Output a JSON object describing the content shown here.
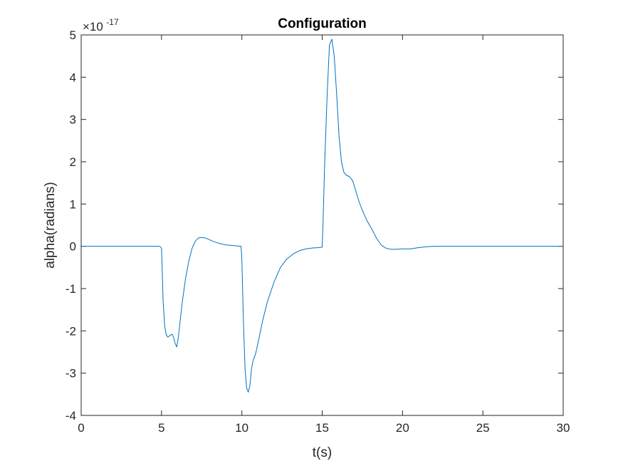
{
  "chart_data": {
    "type": "line",
    "title": "Configuration",
    "xlabel": "t(s)",
    "ylabel": "alpha(radians)",
    "xlim": [
      0,
      30
    ],
    "ylim": [
      -4,
      5
    ],
    "xticks": [
      "0",
      "5",
      "10",
      "15",
      "20",
      "25",
      "30"
    ],
    "yticks": [
      "-4",
      "-3",
      "-2",
      "-1",
      "0",
      "1",
      "2",
      "3",
      "4",
      "5"
    ],
    "y_exponent_base": "×10",
    "y_exponent_power": "-17",
    "grid": false,
    "series": [
      {
        "color": "#0072BD",
        "x": [
          0,
          1,
          2,
          3,
          4,
          4.9,
          5.0,
          5.05,
          5.1,
          5.2,
          5.3,
          5.4,
          5.55,
          5.65,
          5.75,
          5.85,
          5.95,
          6.05,
          6.15,
          6.3,
          6.5,
          6.7,
          6.9,
          7.1,
          7.3,
          7.5,
          7.7,
          7.9,
          8.2,
          8.5,
          8.8,
          9.1,
          9.4,
          9.7,
          9.95,
          10.0,
          10.1,
          10.2,
          10.3,
          10.4,
          10.5,
          10.6,
          10.7,
          10.85,
          11.0,
          11.3,
          11.6,
          12.0,
          12.4,
          12.8,
          13.2,
          13.6,
          14.0,
          14.4,
          14.8,
          15.0,
          15.05,
          15.15,
          15.3,
          15.45,
          15.6,
          15.75,
          15.9,
          16.05,
          16.2,
          16.35,
          16.5,
          16.7,
          16.9,
          17.1,
          17.3,
          17.5,
          17.8,
          18.1,
          18.4,
          18.7,
          19.0,
          19.3,
          19.6,
          20.0,
          20.5,
          21.0,
          21.5,
          22.0,
          23.0,
          24.0,
          25.0,
          26.0,
          27.0,
          28.0,
          29.0,
          30.0
        ],
        "values": [
          0,
          0,
          0,
          0,
          0,
          0,
          -0.05,
          -0.6,
          -1.3,
          -1.9,
          -2.1,
          -2.15,
          -2.1,
          -2.08,
          -2.15,
          -2.3,
          -2.38,
          -2.15,
          -1.8,
          -1.3,
          -0.75,
          -0.35,
          -0.05,
          0.12,
          0.2,
          0.21,
          0.2,
          0.17,
          0.12,
          0.08,
          0.05,
          0.03,
          0.02,
          0.01,
          0.0,
          -0.3,
          -1.8,
          -2.9,
          -3.35,
          -3.45,
          -3.3,
          -2.9,
          -2.7,
          -2.55,
          -2.3,
          -1.75,
          -1.3,
          -0.85,
          -0.5,
          -0.3,
          -0.18,
          -0.1,
          -0.06,
          -0.04,
          -0.03,
          -0.02,
          0.5,
          1.9,
          3.5,
          4.75,
          4.9,
          4.5,
          3.6,
          2.6,
          2.0,
          1.75,
          1.68,
          1.65,
          1.55,
          1.3,
          1.05,
          0.85,
          0.6,
          0.4,
          0.18,
          0.02,
          -0.05,
          -0.07,
          -0.07,
          -0.06,
          -0.06,
          -0.03,
          -0.01,
          0.0,
          0,
          0,
          0,
          0,
          0,
          0,
          0,
          0
        ]
      }
    ]
  }
}
